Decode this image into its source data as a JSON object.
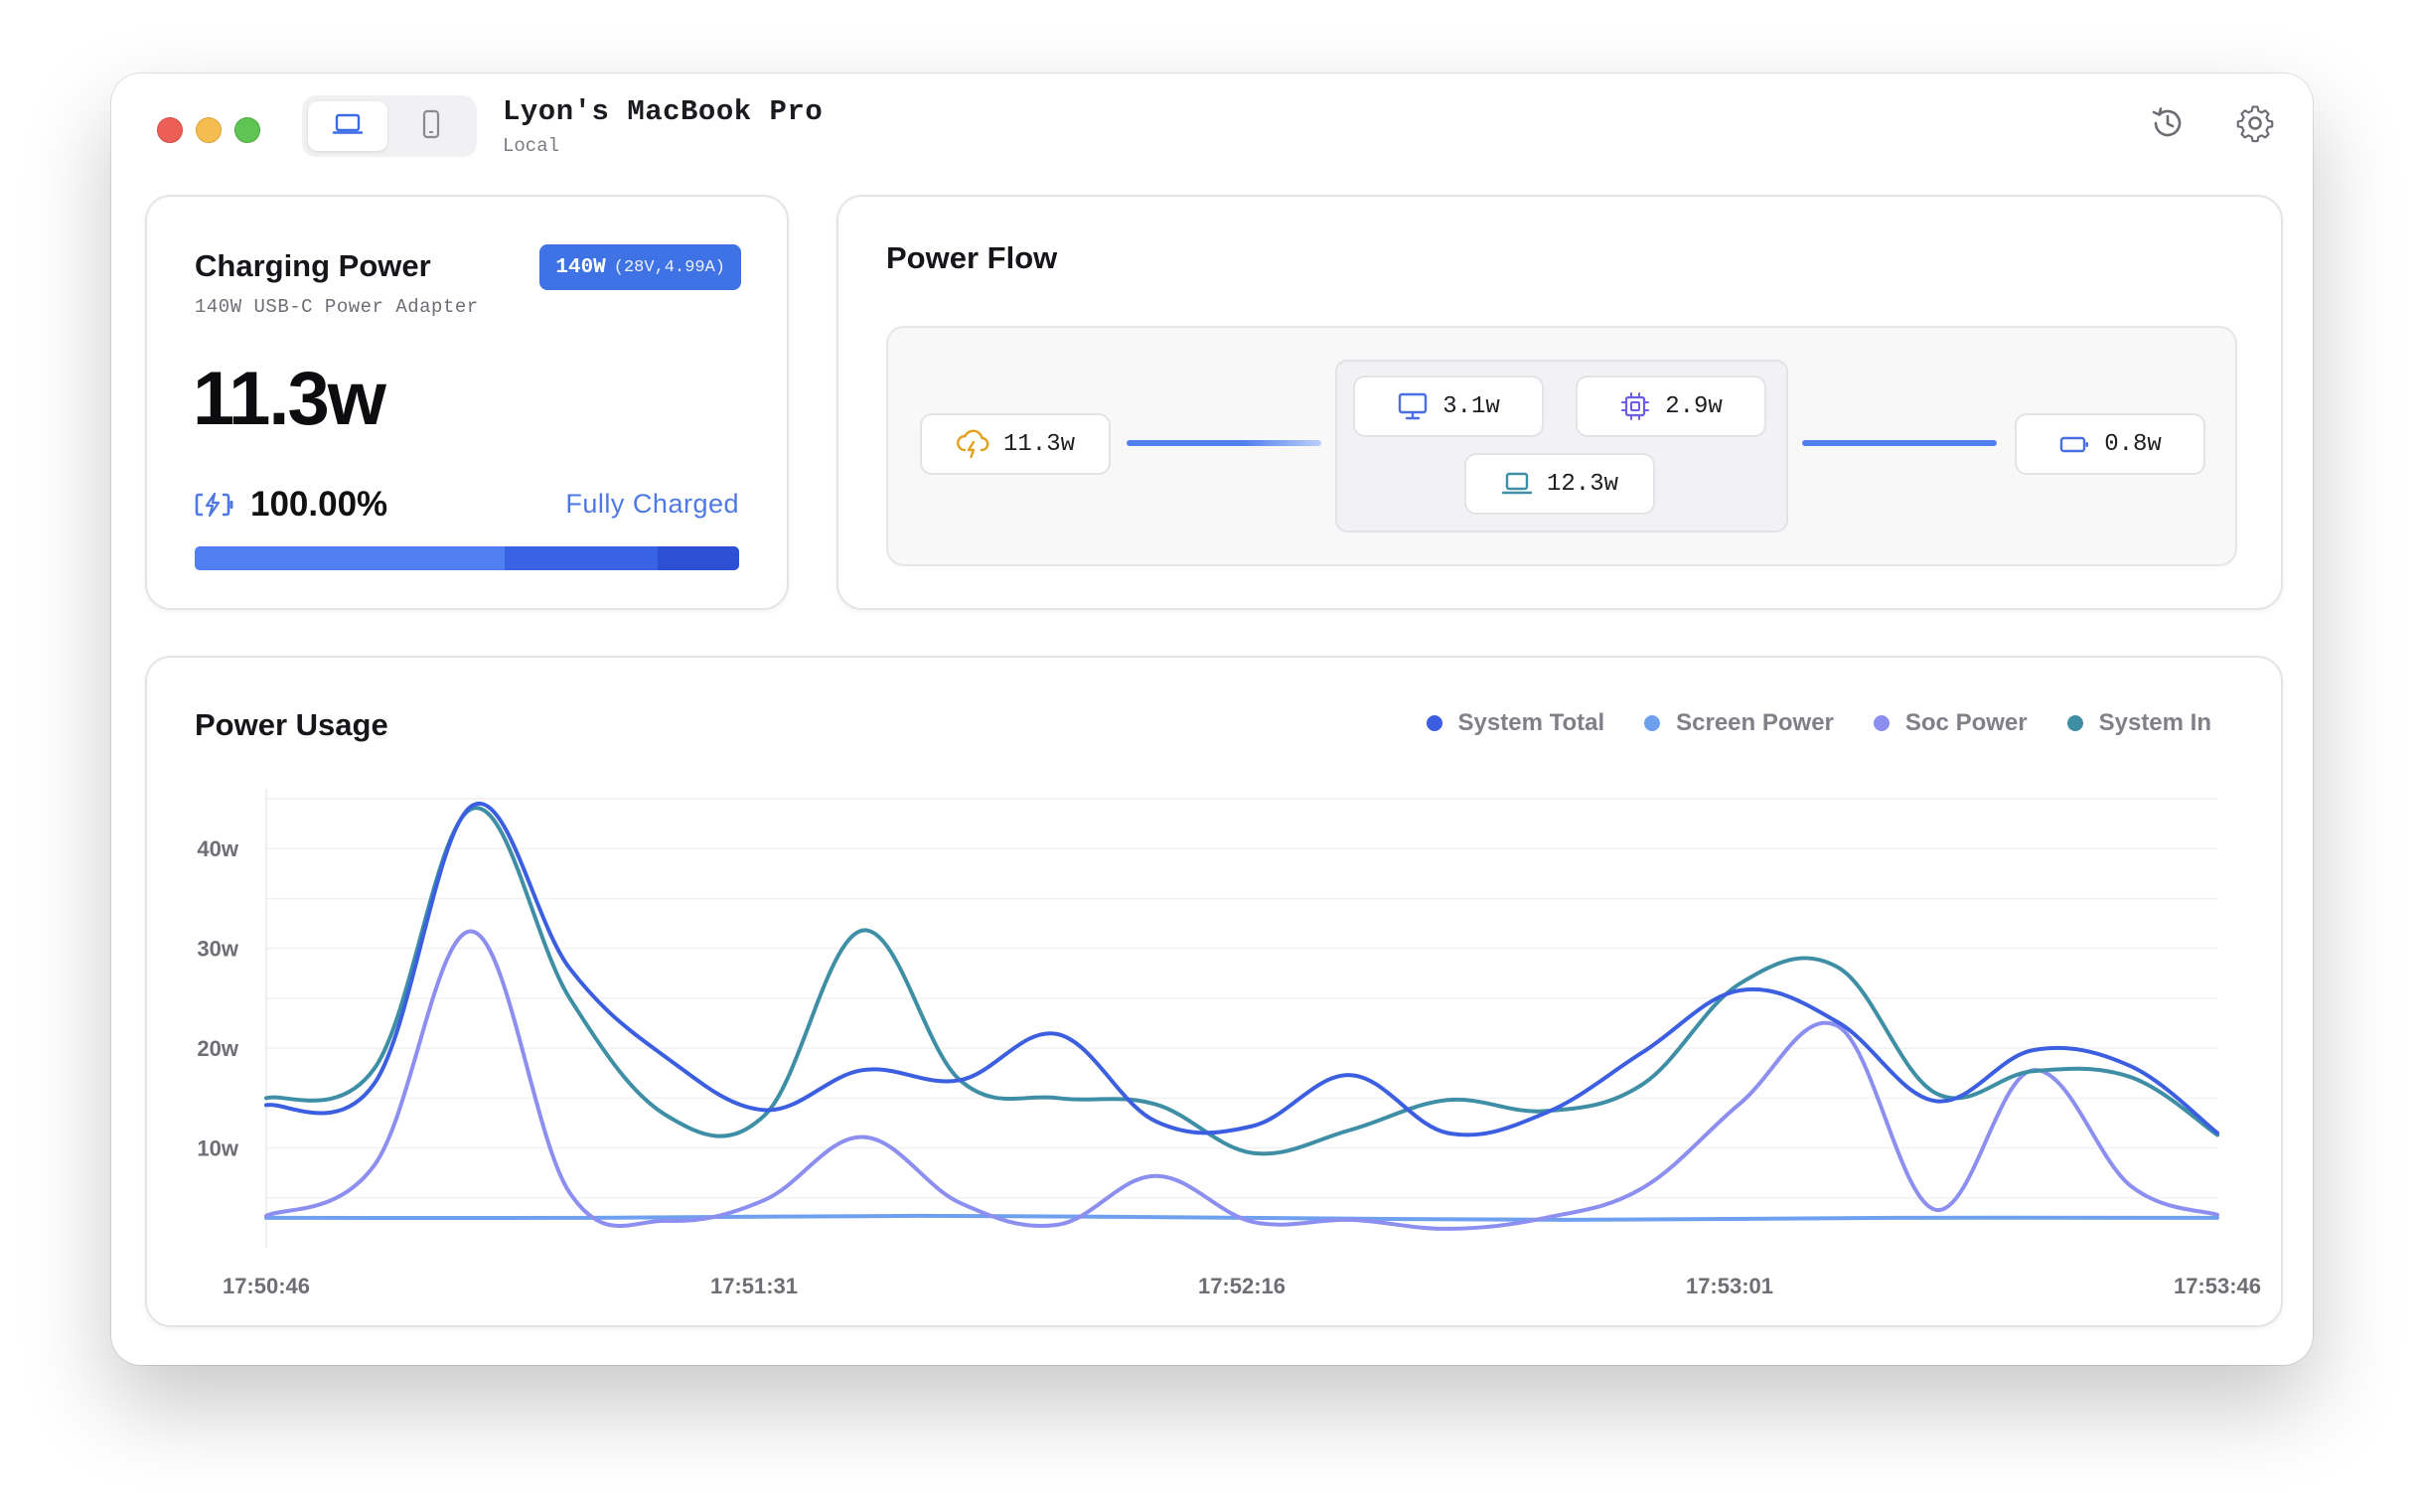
{
  "window": {
    "title": "Lyon's MacBook Pro",
    "subtitle": "Local",
    "device_tabs": [
      "laptop-icon",
      "phone-icon"
    ],
    "toolbar_icons": [
      "history-icon",
      "gear-icon"
    ]
  },
  "charging": {
    "title": "Charging Power",
    "badge_main": "140W",
    "badge_detail": "(28V,4.99A)",
    "adapter": "140W USB-C Power Adapter",
    "power": "11.3w",
    "battery_pct": "100.00%",
    "status": "Fully Charged",
    "bar_segments": [
      {
        "fraction": 0.57,
        "color": "#4f7ff0"
      },
      {
        "fraction": 0.28,
        "color": "#3963e2"
      },
      {
        "fraction": 0.15,
        "color": "#2c4fd4"
      }
    ]
  },
  "flow": {
    "title": "Power Flow",
    "input": {
      "value": "11.3w",
      "icon": "charging-cloud-icon"
    },
    "screen": {
      "value": "3.1w",
      "icon": "monitor-icon"
    },
    "soc": {
      "value": "2.9w",
      "icon": "chip-icon"
    },
    "system": {
      "value": "12.3w",
      "icon": "laptop-icon"
    },
    "battery": {
      "value": "0.8w",
      "icon": "battery-icon"
    }
  },
  "usage": {
    "title": "Power Usage"
  },
  "colors": {
    "system_total": "#3b5fe0",
    "screen_power": "#6fa0f0",
    "soc_power": "#8c8ef0",
    "system_in": "#3e8fa6"
  },
  "chart_data": {
    "type": "line",
    "title": "Power Usage",
    "xlabel": "",
    "ylabel": "",
    "x_tick_labels": [
      "17:50:46",
      "17:51:31",
      "17:52:16",
      "17:53:01",
      "17:53:46"
    ],
    "y_tick_labels": [
      "10w",
      "20w",
      "30w",
      "40w"
    ],
    "y_ticks": [
      10,
      20,
      30,
      40
    ],
    "ylim": [
      0,
      45
    ],
    "xlim": [
      0,
      180
    ],
    "grid": true,
    "legend": "top-right",
    "series": [
      {
        "name": "System Total",
        "color": "#3b5fe0",
        "x": [
          0,
          10,
          19,
          28,
          37,
          46,
          55,
          64,
          73,
          82,
          91,
          100,
          109,
          118,
          127,
          136,
          145,
          154,
          163,
          172,
          180
        ],
        "y": [
          14.3,
          16.5,
          44.3,
          28,
          19,
          13.8,
          17.8,
          16.8,
          21.4,
          12.7,
          12.2,
          17.3,
          11.5,
          13.5,
          19.6,
          25.8,
          22.6,
          14.7,
          19.8,
          18.2,
          11.5
        ]
      },
      {
        "name": "Screen Power",
        "color": "#6fa0f0",
        "x": [
          0,
          30,
          60,
          90,
          120,
          150,
          180
        ],
        "y": [
          3.0,
          3.0,
          3.2,
          3.0,
          2.8,
          3.0,
          3.0
        ]
      },
      {
        "name": "Soc Power",
        "color": "#8c8ef0",
        "x": [
          0,
          10,
          19,
          28,
          37,
          46,
          55,
          64,
          73,
          82,
          91,
          100,
          109,
          118,
          127,
          136,
          145,
          154,
          163,
          172,
          180
        ],
        "y": [
          3.2,
          8.3,
          31.7,
          5.5,
          2.7,
          4.8,
          11.1,
          4.5,
          2.3,
          7.2,
          2.6,
          2.8,
          1.9,
          3.0,
          6.0,
          14.5,
          22.2,
          3.8,
          17.8,
          6.2,
          3.3
        ]
      },
      {
        "name": "System In",
        "color": "#3e8fa6",
        "x": [
          0,
          10,
          19,
          28,
          37,
          46,
          55,
          64,
          73,
          82,
          91,
          100,
          109,
          118,
          127,
          136,
          145,
          154,
          163,
          172,
          180
        ],
        "y": [
          15.0,
          18.0,
          44.0,
          25.0,
          13.2,
          13.3,
          31.8,
          16.8,
          15.0,
          14.4,
          9.5,
          11.8,
          14.8,
          13.7,
          16.4,
          26.5,
          28.1,
          15.5,
          17.7,
          17.1,
          11.3
        ]
      }
    ]
  }
}
